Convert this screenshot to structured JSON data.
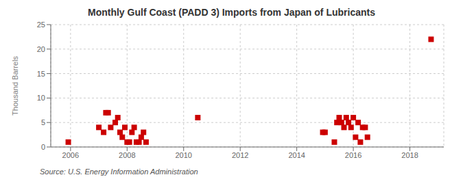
{
  "chart_data": {
    "type": "scatter",
    "title": "Monthly Gulf Coast (PADD 3) Imports from Japan of Lubricants",
    "ylabel": "Thousand Barrels",
    "annotation": "Source: U.S. Energy Information Administration",
    "color": "#cc0000",
    "marker": "square",
    "grid": true,
    "xlim": [
      2005.3,
      2019.2
    ],
    "ylim": [
      0,
      25
    ],
    "xticks": [
      2006,
      2008,
      2010,
      2012,
      2014,
      2016,
      2018
    ],
    "yticks": [
      0,
      5,
      10,
      15,
      20,
      25
    ],
    "x": [
      2005.92,
      2007.0,
      2007.17,
      2007.25,
      2007.33,
      2007.42,
      2007.58,
      2007.67,
      2007.75,
      2007.83,
      2007.92,
      2008.0,
      2008.08,
      2008.17,
      2008.25,
      2008.33,
      2008.42,
      2008.5,
      2008.58,
      2008.67,
      2010.5,
      2014.92,
      2015.0,
      2015.33,
      2015.42,
      2015.5,
      2015.58,
      2015.67,
      2015.75,
      2015.83,
      2015.92,
      2016.0,
      2016.08,
      2016.17,
      2016.25,
      2016.33,
      2016.42,
      2016.5,
      2018.75
    ],
    "values": [
      1,
      4,
      3,
      7,
      7,
      4,
      5,
      6,
      3,
      2,
      4,
      1,
      1,
      3,
      4,
      1,
      1,
      2,
      3,
      1,
      6,
      3,
      3,
      1,
      5,
      6,
      5,
      4,
      6,
      5,
      4,
      6,
      2,
      5,
      1,
      4,
      4,
      2,
      22
    ]
  }
}
